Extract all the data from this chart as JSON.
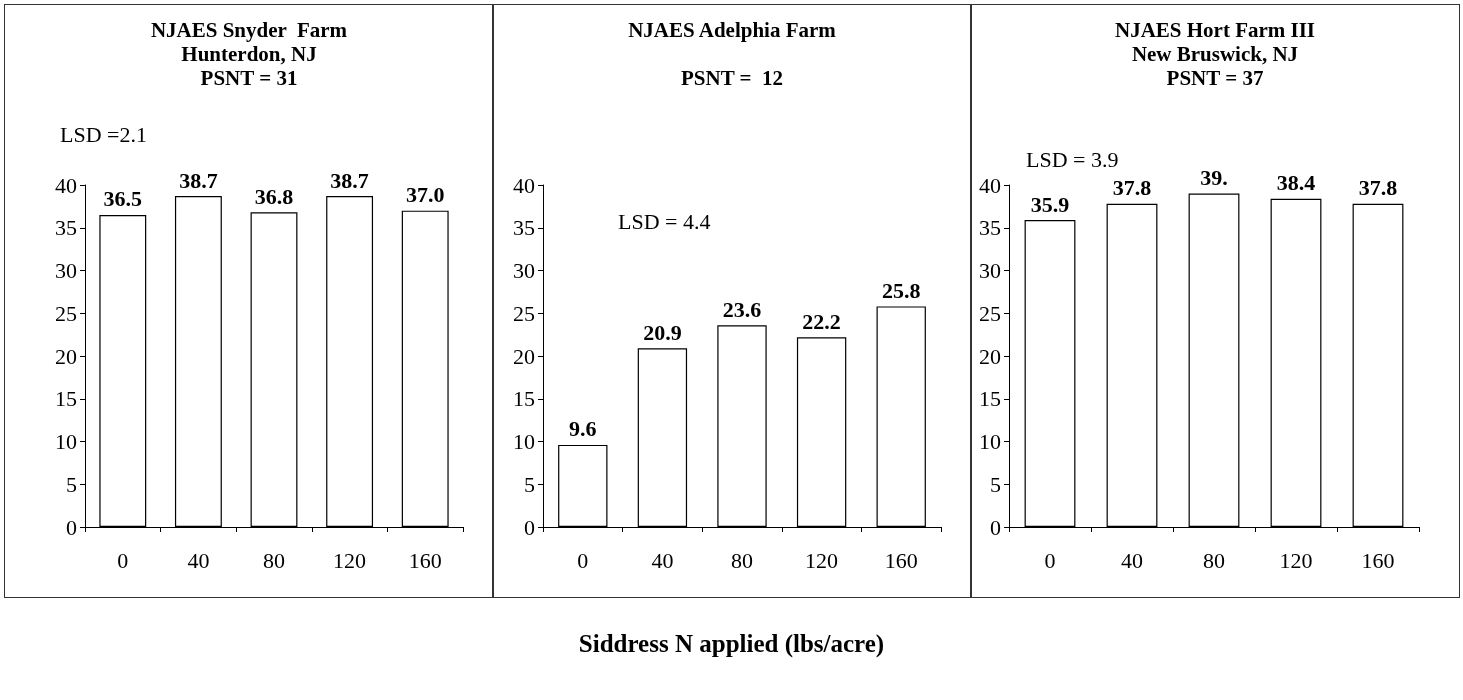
{
  "chart_data": [
    {
      "type": "bar",
      "title": "NJAES Snyder  Farm\nHunterdon, NJ\nPSNT = 31",
      "annotations": [
        "LSD =2.1"
      ],
      "categories": [
        "0",
        "40",
        "80",
        "120",
        "160"
      ],
      "values": [
        36.5,
        38.7,
        36.8,
        38.7,
        37.0
      ],
      "value_labels": [
        "36.5",
        "38.7",
        "36.8",
        "38.7",
        "37.0"
      ],
      "color": "#ffffff",
      "ylim": [
        0,
        40
      ],
      "yticks": [
        0,
        5,
        10,
        15,
        20,
        25,
        30,
        35,
        40
      ]
    },
    {
      "type": "bar",
      "title": "NJAES Adelphia Farm\n\nPSNT =  12",
      "annotations": [
        "LSD = 4.4"
      ],
      "xlabel": "Siddress N applied (lbs/acre)",
      "categories": [
        "0",
        "40",
        "80",
        "120",
        "160"
      ],
      "values": [
        9.6,
        20.9,
        23.6,
        22.2,
        25.8
      ],
      "value_labels": [
        "9.6",
        "20.9",
        "23.6",
        "22.2",
        "25.8"
      ],
      "color": "#ffffff",
      "ylim": [
        0,
        40
      ],
      "yticks": [
        0,
        5,
        10,
        15,
        20,
        25,
        30,
        35,
        40
      ]
    },
    {
      "type": "bar",
      "title": "NJAES Hort Farm III\nNew Bruswick, NJ\nPSNT = 37",
      "annotations": [
        "LSD = 3.9"
      ],
      "categories": [
        "0",
        "40",
        "80",
        "120",
        "160"
      ],
      "values": [
        35.9,
        37.8,
        39,
        38.4,
        37.8
      ],
      "value_labels": [
        "35.9",
        "37.8",
        "39.",
        "38.4",
        "37.8"
      ],
      "color": "#ffffff",
      "ylim": [
        0,
        40
      ],
      "yticks": [
        0,
        5,
        10,
        15,
        20,
        25,
        30,
        35,
        40
      ]
    }
  ]
}
